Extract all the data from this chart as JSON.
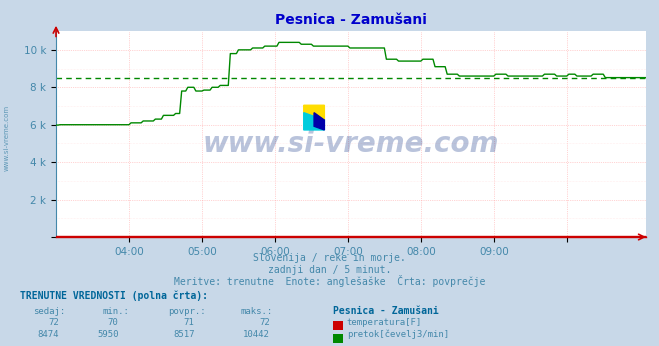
{
  "title": "Pesnica - Zamušani",
  "bg_color": "#c8d8e8",
  "plot_bg_color": "#ffffff",
  "title_color": "#0000cc",
  "title_fontsize": 10,
  "grid_color": "#ffaaaa",
  "grid_color2": "#ffdddd",
  "x_min": 0,
  "x_max": 291,
  "y_min": 0,
  "y_max": 11000,
  "y_ticks": [
    0,
    2000,
    4000,
    6000,
    8000,
    10000
  ],
  "y_tick_labels": [
    "",
    "2 k",
    "4 k",
    "6 k",
    "8 k",
    "10 k"
  ],
  "hour_tick_positions": [
    36,
    72,
    108,
    144,
    180,
    216,
    252
  ],
  "hour_tick_labels": [
    "04:00",
    "05:00",
    "06:00",
    "07:00",
    "08:00",
    "09:00",
    ""
  ],
  "line_color_flow": "#008800",
  "line_color_temp": "#cc0000",
  "avg_flow": 8517,
  "watermark": "www.si-vreme.com",
  "subtitle1": "Slovenija / reke in morje.",
  "subtitle2": "zadnji dan / 5 minut.",
  "subtitle3": "Meritve: trenutne  Enote: anglešaške  Črta: povprečje",
  "label_color": "#4488aa",
  "footer_bold_color": "#006699",
  "temp_sedaj": 72,
  "temp_min": 70,
  "temp_povpr": 71,
  "temp_maks": 72,
  "flow_sedaj": 8474,
  "flow_min": 5950,
  "flow_povpr": 8517,
  "flow_maks": 10442,
  "flow_steps": [
    [
      0,
      5980
    ],
    [
      2,
      6000
    ],
    [
      36,
      6000
    ],
    [
      37,
      6100
    ],
    [
      42,
      6100
    ],
    [
      43,
      6200
    ],
    [
      48,
      6200
    ],
    [
      49,
      6300
    ],
    [
      52,
      6300
    ],
    [
      53,
      6500
    ],
    [
      58,
      6500
    ],
    [
      59,
      6600
    ],
    [
      60,
      6600
    ],
    [
      62,
      7800
    ],
    [
      64,
      7800
    ],
    [
      65,
      8000
    ],
    [
      68,
      8000
    ],
    [
      69,
      7800
    ],
    [
      72,
      7800
    ],
    [
      73,
      7850
    ],
    [
      76,
      7850
    ],
    [
      77,
      8000
    ],
    [
      80,
      8000
    ],
    [
      81,
      8100
    ],
    [
      85,
      8100
    ],
    [
      86,
      9800
    ],
    [
      88,
      9800
    ],
    [
      90,
      10000
    ],
    [
      96,
      10000
    ],
    [
      97,
      10100
    ],
    [
      102,
      10100
    ],
    [
      103,
      10200
    ],
    [
      108,
      10200
    ],
    [
      110,
      10400
    ],
    [
      120,
      10400
    ],
    [
      121,
      10300
    ],
    [
      126,
      10300
    ],
    [
      127,
      10200
    ],
    [
      144,
      10200
    ],
    [
      145,
      10100
    ],
    [
      162,
      10100
    ],
    [
      163,
      9500
    ],
    [
      168,
      9500
    ],
    [
      169,
      9400
    ],
    [
      180,
      9400
    ],
    [
      181,
      9500
    ],
    [
      186,
      9500
    ],
    [
      187,
      9100
    ],
    [
      192,
      9100
    ],
    [
      193,
      8700
    ],
    [
      198,
      8700
    ],
    [
      199,
      8600
    ],
    [
      216,
      8600
    ],
    [
      217,
      8700
    ],
    [
      222,
      8700
    ],
    [
      223,
      8600
    ],
    [
      240,
      8600
    ],
    [
      241,
      8700
    ],
    [
      246,
      8700
    ],
    [
      247,
      8600
    ],
    [
      252,
      8600
    ],
    [
      253,
      8700
    ],
    [
      256,
      8700
    ],
    [
      257,
      8600
    ],
    [
      264,
      8600
    ],
    [
      265,
      8700
    ],
    [
      270,
      8700
    ],
    [
      271,
      8517
    ],
    [
      288,
      8517
    ]
  ]
}
